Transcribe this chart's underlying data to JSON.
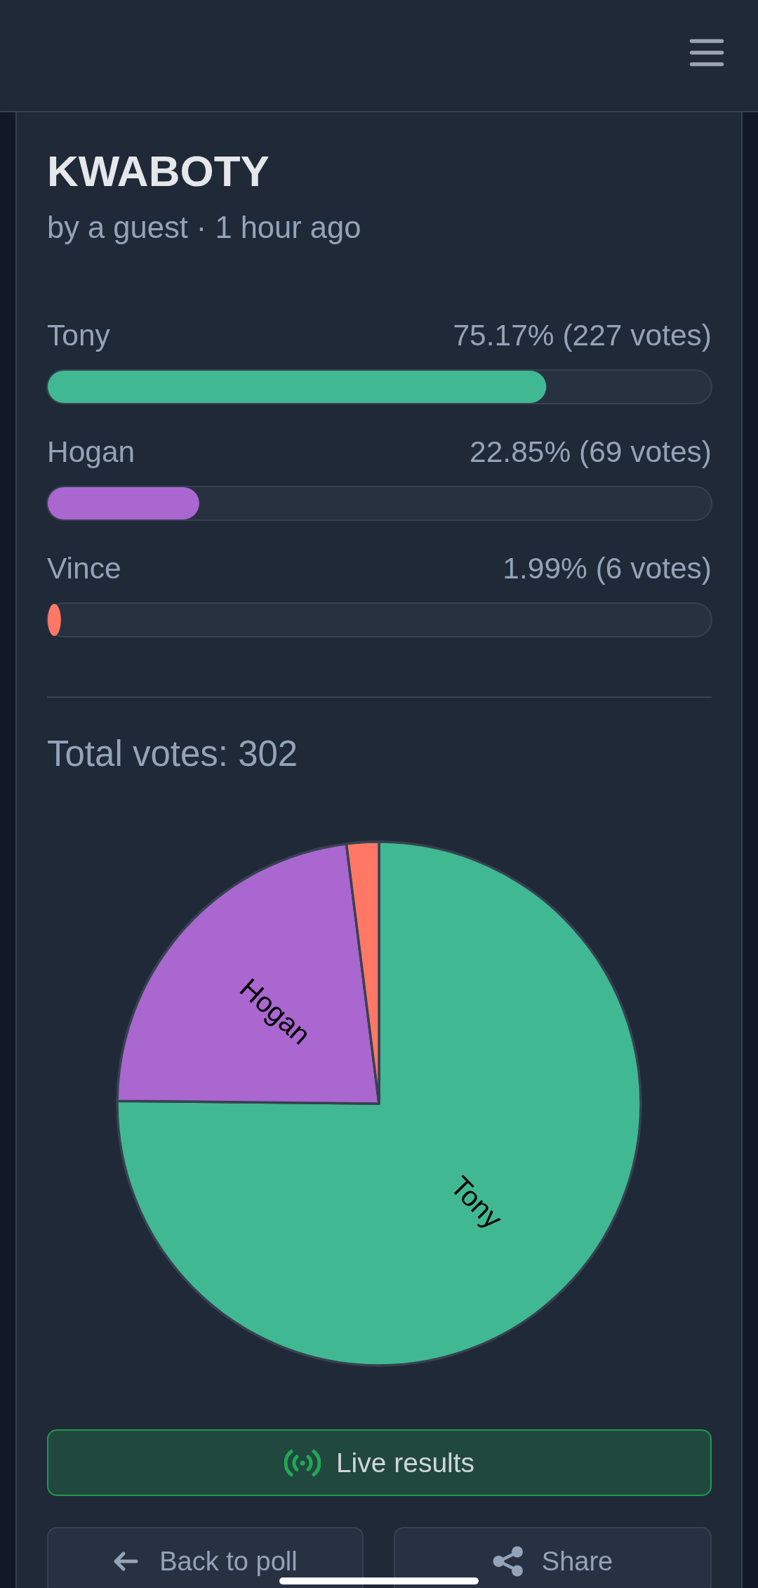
{
  "chart_data": [
    {
      "type": "bar",
      "orientation": "horizontal",
      "title": "KWABOTY",
      "subtitle": "by a guest · 1 hour ago",
      "categories": [
        "Tony",
        "Hogan",
        "Vince"
      ],
      "values": [
        75.17,
        22.85,
        1.99
      ],
      "colors": [
        "#40b992",
        "#a967cf",
        "#ff7866"
      ],
      "xlim": [
        0,
        100
      ],
      "value_labels": [
        "75.17% (227 votes)",
        "22.85% (69 votes)",
        "1.99% (6 votes)"
      ],
      "tick_labels": "y"
    },
    {
      "type": "pie",
      "title": "Total votes: 302",
      "categories": [
        "Tony",
        "Hogan",
        null
      ],
      "values": [
        75.17,
        22.85,
        1.99
      ],
      "colors": [
        "#40b992",
        "#a967cf",
        "#ff7866"
      ],
      "annotations": [
        "Live results",
        "Back to poll",
        "Share"
      ]
    }
  ]
}
